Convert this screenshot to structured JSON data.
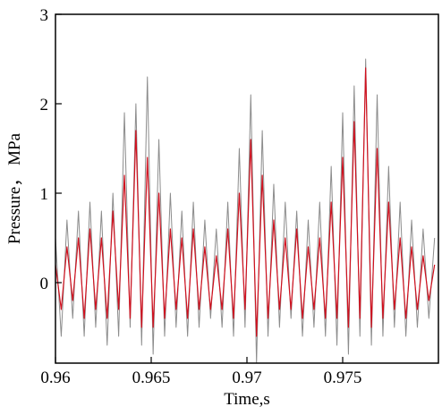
{
  "chart_data": {
    "type": "line",
    "title": "",
    "xlabel": "Time,s",
    "ylabel": "Pressure， MPa",
    "xlim": [
      0.96,
      0.98
    ],
    "ylim": [
      -0.9,
      3
    ],
    "x_ticks": [
      0.96,
      0.965,
      0.97,
      0.975
    ],
    "x_tick_labels": [
      "0.96",
      "0.965",
      "0.97",
      "0.975"
    ],
    "y_ticks": [
      0,
      1,
      2,
      3
    ],
    "y_tick_labels": [
      "0",
      "1",
      "2",
      "3"
    ],
    "grid": false,
    "legend": "none",
    "series": [
      {
        "color": "#8c8c8c",
        "x": [
          0.96,
          0.9603,
          0.9606,
          0.9609,
          0.9612,
          0.9615,
          0.9618,
          0.9621,
          0.9624,
          0.9627,
          0.963,
          0.9633,
          0.9636,
          0.9639,
          0.9642,
          0.9645,
          0.9648,
          0.9651,
          0.9654,
          0.9657,
          0.966,
          0.9663,
          0.9666,
          0.9669,
          0.9672,
          0.9675,
          0.9678,
          0.9681,
          0.9684,
          0.9687,
          0.969,
          0.9693,
          0.9696,
          0.9699,
          0.9702,
          0.9705,
          0.9708,
          0.9711,
          0.9714,
          0.9717,
          0.972,
          0.9723,
          0.9726,
          0.9729,
          0.9732,
          0.9735,
          0.9738,
          0.9741,
          0.9744,
          0.9747,
          0.975,
          0.9753,
          0.9756,
          0.9759,
          0.9762,
          0.9765,
          0.9768,
          0.9771,
          0.9774,
          0.9777,
          0.978,
          0.9783,
          0.9786,
          0.9789,
          0.9792,
          0.9795,
          0.9798
        ],
        "y": [
          0.5,
          -0.6,
          0.7,
          -0.4,
          0.8,
          -0.6,
          0.9,
          -0.5,
          0.8,
          -0.7,
          1.0,
          -0.6,
          1.9,
          -0.5,
          2.0,
          -0.7,
          2.3,
          -0.8,
          1.6,
          -0.6,
          1.0,
          -0.5,
          0.8,
          -0.6,
          0.9,
          -0.5,
          0.7,
          -0.4,
          0.6,
          -0.5,
          0.9,
          -0.6,
          1.5,
          -0.5,
          2.1,
          -0.9,
          1.7,
          -0.6,
          1.1,
          -0.5,
          0.9,
          -0.4,
          0.8,
          -0.6,
          0.7,
          -0.5,
          0.9,
          -0.6,
          1.3,
          -0.7,
          1.9,
          -0.8,
          2.2,
          -0.6,
          2.5,
          -0.7,
          2.1,
          -0.6,
          1.3,
          -0.5,
          0.9,
          -0.6,
          0.7,
          -0.5,
          0.6,
          -0.4,
          0.5
        ]
      },
      {
        "color": "#d0101e",
        "x": [
          0.96,
          0.9603,
          0.9606,
          0.9609,
          0.9612,
          0.9615,
          0.9618,
          0.9621,
          0.9624,
          0.9627,
          0.963,
          0.9633,
          0.9636,
          0.9639,
          0.9642,
          0.9645,
          0.9648,
          0.9651,
          0.9654,
          0.9657,
          0.966,
          0.9663,
          0.9666,
          0.9669,
          0.9672,
          0.9675,
          0.9678,
          0.9681,
          0.9684,
          0.9687,
          0.969,
          0.9693,
          0.9696,
          0.9699,
          0.9702,
          0.9705,
          0.9708,
          0.9711,
          0.9714,
          0.9717,
          0.972,
          0.9723,
          0.9726,
          0.9729,
          0.9732,
          0.9735,
          0.9738,
          0.9741,
          0.9744,
          0.9747,
          0.975,
          0.9753,
          0.9756,
          0.9759,
          0.9762,
          0.9765,
          0.9768,
          0.9771,
          0.9774,
          0.9777,
          0.978,
          0.9783,
          0.9786,
          0.9789,
          0.9792,
          0.9795,
          0.9798
        ],
        "y": [
          0.2,
          -0.3,
          0.4,
          -0.2,
          0.5,
          -0.4,
          0.6,
          -0.3,
          0.5,
          -0.4,
          0.8,
          -0.3,
          1.2,
          -0.4,
          1.7,
          -0.5,
          1.4,
          -0.5,
          1.0,
          -0.4,
          0.6,
          -0.3,
          0.5,
          -0.4,
          0.6,
          -0.3,
          0.4,
          -0.3,
          0.3,
          -0.3,
          0.6,
          -0.4,
          1.0,
          -0.3,
          1.6,
          -0.6,
          1.2,
          -0.4,
          0.7,
          -0.3,
          0.5,
          -0.3,
          0.6,
          -0.4,
          0.4,
          -0.3,
          0.5,
          -0.4,
          0.9,
          -0.4,
          1.4,
          -0.5,
          1.8,
          -0.4,
          2.4,
          -0.5,
          1.5,
          -0.4,
          0.9,
          -0.3,
          0.5,
          -0.4,
          0.4,
          -0.3,
          0.3,
          -0.2,
          0.2
        ]
      }
    ]
  }
}
